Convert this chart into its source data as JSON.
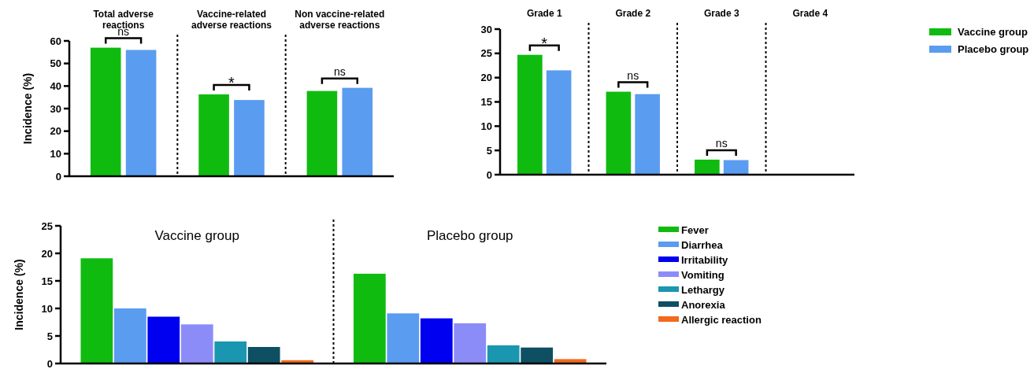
{
  "chart_data": [
    {
      "type": "bar",
      "ylabel": "Incidence (%)",
      "categories": [
        "Total adverse reactions",
        "Vaccine-related adverse reactions",
        "Non vaccine-related adverse reactions"
      ],
      "series": [
        {
          "color": "#10bb10",
          "values": [
            57,
            36.3,
            37.8
          ]
        },
        {
          "color": "#5a9cf0",
          "values": [
            56,
            33.8,
            39.2
          ]
        }
      ],
      "ylim": [
        0,
        60
      ],
      "yticks": [
        0,
        10,
        20,
        30,
        40,
        50,
        60
      ],
      "grid": false,
      "legend": false,
      "annotations": [
        "ns",
        "*",
        "ns"
      ]
    },
    {
      "type": "bar",
      "categories": [
        "Grade 1",
        "Grade 2",
        "Grade 3",
        "Grade 4"
      ],
      "series": [
        {
          "name": "Vaccine group",
          "color": "#10bb10",
          "values": [
            24.7,
            17.1,
            3.1,
            0
          ]
        },
        {
          "name": "Placebo group",
          "color": "#5a9cf0",
          "values": [
            21.5,
            16.6,
            3.0,
            0
          ]
        }
      ],
      "ylim": [
        0,
        30
      ],
      "yticks": [
        0,
        5,
        10,
        15,
        20,
        25,
        30
      ],
      "grid": false,
      "legend": "right",
      "annotations": [
        "*",
        "ns",
        "ns"
      ]
    },
    {
      "type": "bar",
      "ylabel": "Incidence (%)",
      "categories": [
        "Vaccine group",
        "Placebo group"
      ],
      "series": [
        {
          "name": "Fever",
          "color": "#10bb10",
          "values": [
            19.1,
            16.3
          ]
        },
        {
          "name": "Diarrhea",
          "color": "#5a9cf0",
          "values": [
            10.0,
            9.1
          ]
        },
        {
          "name": "Irritability",
          "color": "#0000f0",
          "values": [
            8.5,
            8.2
          ]
        },
        {
          "name": "Vomiting",
          "color": "#8c8cf8",
          "values": [
            7.1,
            7.3
          ]
        },
        {
          "name": "Lethargy",
          "color": "#1a96b0",
          "values": [
            4.0,
            3.3
          ]
        },
        {
          "name": "Anorexia",
          "color": "#0e4f63",
          "values": [
            3.0,
            2.9
          ]
        },
        {
          "name": "Allergic reaction",
          "color": "#f26a1b",
          "values": [
            0.6,
            0.8
          ]
        }
      ],
      "ylim": [
        0,
        25
      ],
      "yticks": [
        0,
        5,
        10,
        15,
        20,
        25
      ],
      "grid": false,
      "legend": "right"
    }
  ]
}
